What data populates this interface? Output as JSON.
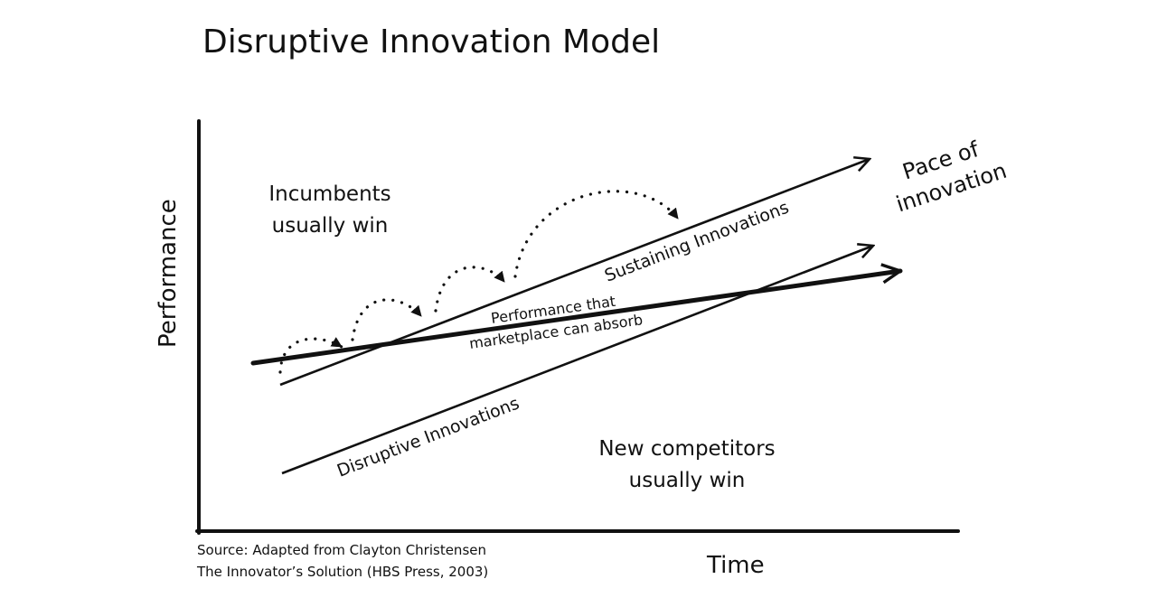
{
  "title": "Disruptive Innovation Model",
  "axes": {
    "y_label": "Performance",
    "x_label": "Time"
  },
  "regions": {
    "incumbents": [
      "Incumbents",
      "usually win"
    ],
    "new_competitors": [
      "New competitors",
      "usually win"
    ]
  },
  "pace_label": [
    "Pace of",
    "innovation"
  ],
  "lines": {
    "sustaining": "Sustaining Innovations",
    "absorb": [
      "Performance that",
      "marketplace can absorb"
    ],
    "disruptive": "Disruptive Innovations"
  },
  "source": [
    "Source: Adapted from Clayton Christensen",
    "The Innovator’s Solution (HBS Press, 2003)"
  ]
}
